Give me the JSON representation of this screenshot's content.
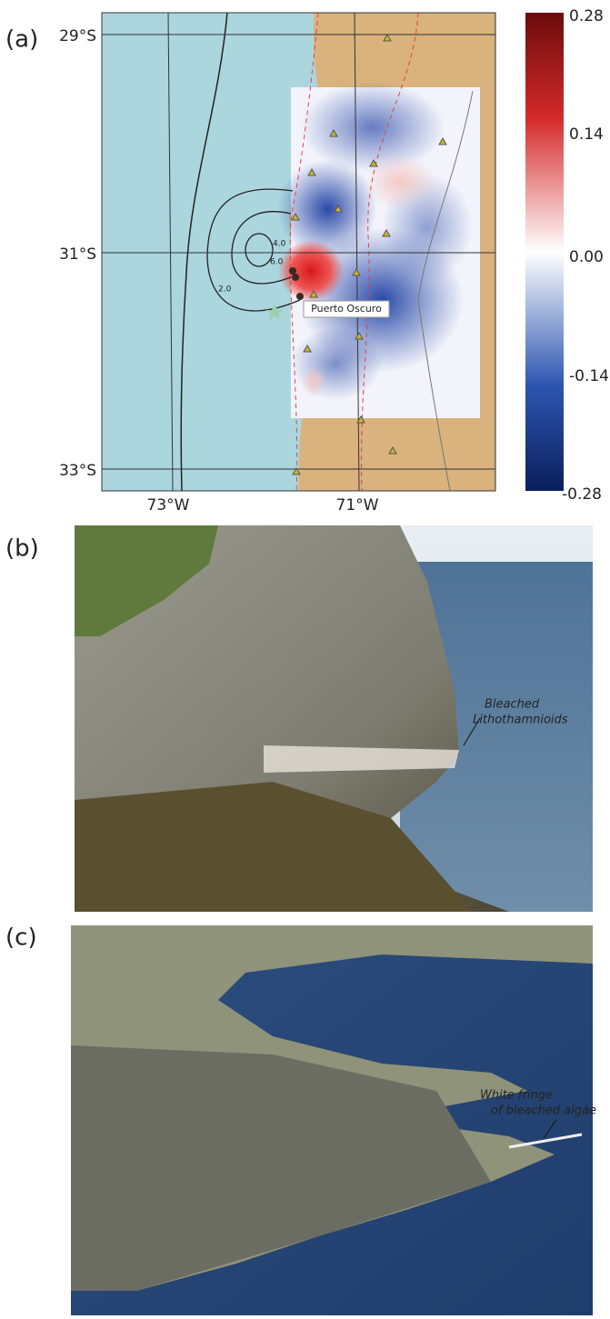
{
  "panel_a": {
    "label": "(a)",
    "lat_ticks": [
      "29°S",
      "31°S",
      "33°S"
    ],
    "lon_ticks": [
      "73°W",
      "71°W"
    ],
    "contour_labels": [
      "4.0",
      "6.0",
      "2.0"
    ],
    "place_label": "Puerto Oscuro",
    "colorbar_ticks": [
      "0.28",
      "0.14",
      "0.00",
      "-0.14",
      "-0.28"
    ]
  },
  "panel_b": {
    "label": "(b)",
    "annotation": [
      "Bleached",
      "Lithothamnioids"
    ]
  },
  "panel_c": {
    "label": "(c)",
    "annotation": [
      "White fringe",
      "of bleached algae"
    ]
  }
}
